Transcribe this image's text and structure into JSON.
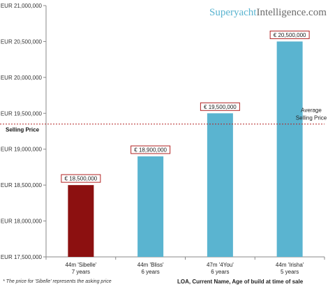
{
  "brand": {
    "part1": "Superyacht",
    "part2": "Intelligence.com"
  },
  "footnote": "* The price for 'Sibelle' represents the asking price",
  "chart_data": {
    "type": "bar",
    "currency_prefix": "EUR",
    "categories": [
      {
        "line1": "44m 'Sibelle'",
        "line2": "7 years"
      },
      {
        "line1": "44m 'Bliss'",
        "line2": "6 years"
      },
      {
        "line1": "47m '4You'",
        "line2": "6 years"
      },
      {
        "line1": "44m 'Irisha'",
        "line2": "5 years"
      }
    ],
    "values": [
      18500000,
      18900000,
      19500000,
      20500000
    ],
    "data_labels": [
      "€ 18,500,000",
      "€ 18,900,000",
      "€ 19,500,000",
      "€ 20,500,000"
    ],
    "bar_colors": [
      "#8c1010",
      "#5ab4d0",
      "#5ab4d0",
      "#5ab4d0"
    ],
    "ylim": [
      17500000,
      21000000
    ],
    "yticks": [
      17500000,
      18000000,
      18500000,
      19000000,
      19500000,
      20000000,
      20500000,
      21000000
    ],
    "ytick_labels": [
      "EUR 17,500,000",
      "EUR 18,000,000",
      "EUR 18,500,000",
      "EUR 19,000,000",
      "EUR 19,500,000",
      "EUR 20,000,000",
      "EUR 20,500,000",
      "EUR 21,000,000"
    ],
    "xlabel": "LOA, Current Name, Age of build at time of sale",
    "average": {
      "value": 19350000,
      "label_line1": "Average",
      "label_line2": "Selling Price",
      "left_label": "Selling Price",
      "color": "#b22222"
    },
    "grid": false
  }
}
